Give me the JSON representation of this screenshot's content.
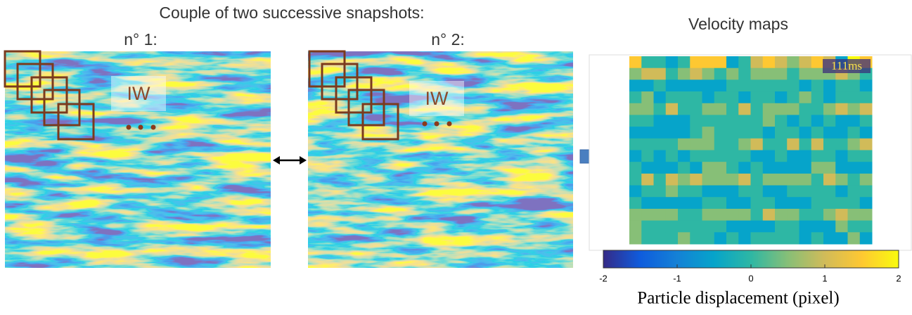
{
  "title": "Couple of two successive snapshots:",
  "snapshots": [
    {
      "label": "n° 1:",
      "window_label": "IW"
    },
    {
      "label": "n° 2:",
      "window_label": "IW"
    }
  ],
  "velocity": {
    "title": "Velocity maps",
    "time_label": "111ms",
    "colorbar": {
      "ticks": [
        -2,
        -1,
        0,
        1,
        2
      ],
      "label": "Particle displacement (pixel)"
    }
  }
}
